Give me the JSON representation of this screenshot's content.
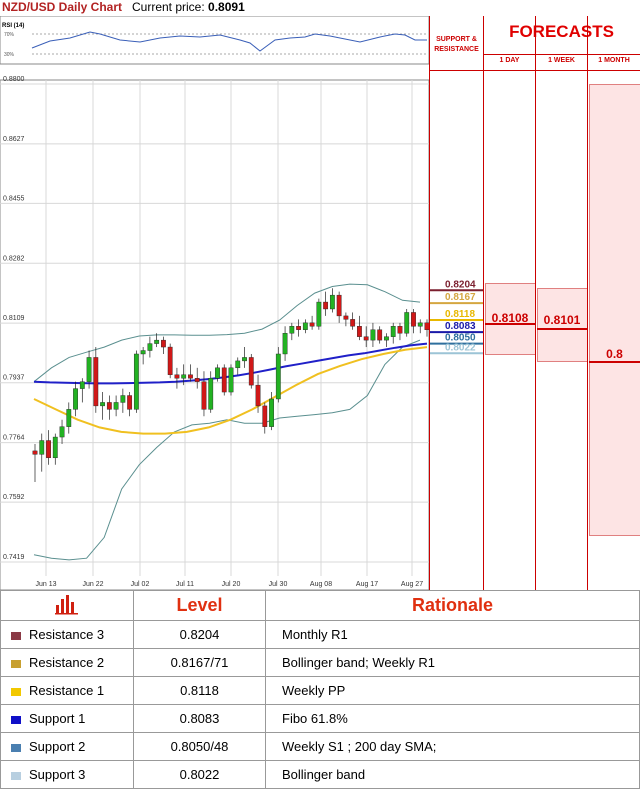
{
  "header": {
    "title": "NZD/USD Daily Chart",
    "price_label": "Current price:",
    "price_value": "0.8091"
  },
  "rsi": {
    "label": "RSI (14)",
    "upper": "70%",
    "lower": "30%"
  },
  "chart_data": {
    "type": "candlestick",
    "yticks": [
      "0.8800",
      "0.8627",
      "0.8455",
      "0.8282",
      "0.8109",
      "0.7937",
      "0.7764",
      "0.7592",
      "0.7419"
    ],
    "ylim": [
      0.7419,
      0.88
    ],
    "xticks": [
      "Jun 13",
      "Jun 22",
      "Jul 02",
      "Jul 11",
      "Jul 20",
      "Jul 30",
      "Aug 08",
      "Aug 17",
      "Aug 27"
    ],
    "candles": [
      [
        0.774,
        0.776,
        0.765,
        0.773
      ],
      [
        0.773,
        0.779,
        0.768,
        0.777
      ],
      [
        0.777,
        0.78,
        0.77,
        0.772
      ],
      [
        0.772,
        0.779,
        0.77,
        0.778
      ],
      [
        0.778,
        0.783,
        0.776,
        0.781
      ],
      [
        0.781,
        0.788,
        0.779,
        0.786
      ],
      [
        0.786,
        0.794,
        0.784,
        0.792
      ],
      [
        0.792,
        0.795,
        0.788,
        0.794
      ],
      [
        0.794,
        0.803,
        0.792,
        0.801
      ],
      [
        0.801,
        0.804,
        0.785,
        0.787
      ],
      [
        0.787,
        0.791,
        0.783,
        0.788
      ],
      [
        0.788,
        0.79,
        0.783,
        0.786
      ],
      [
        0.786,
        0.79,
        0.784,
        0.788
      ],
      [
        0.788,
        0.792,
        0.785,
        0.79
      ],
      [
        0.79,
        0.791,
        0.784,
        0.786
      ],
      [
        0.786,
        0.803,
        0.785,
        0.802
      ],
      [
        0.802,
        0.804,
        0.799,
        0.803
      ],
      [
        0.803,
        0.807,
        0.801,
        0.805
      ],
      [
        0.805,
        0.808,
        0.804,
        0.806
      ],
      [
        0.806,
        0.807,
        0.802,
        0.804
      ],
      [
        0.804,
        0.805,
        0.795,
        0.796
      ],
      [
        0.796,
        0.798,
        0.792,
        0.795
      ],
      [
        0.795,
        0.799,
        0.793,
        0.796
      ],
      [
        0.796,
        0.799,
        0.794,
        0.795
      ],
      [
        0.795,
        0.798,
        0.792,
        0.794
      ],
      [
        0.794,
        0.797,
        0.784,
        0.786
      ],
      [
        0.786,
        0.797,
        0.785,
        0.795
      ],
      [
        0.795,
        0.799,
        0.794,
        0.798
      ],
      [
        0.798,
        0.799,
        0.79,
        0.791
      ],
      [
        0.791,
        0.799,
        0.79,
        0.798
      ],
      [
        0.798,
        0.801,
        0.796,
        0.8
      ],
      [
        0.8,
        0.804,
        0.798,
        0.801
      ],
      [
        0.801,
        0.802,
        0.792,
        0.793
      ],
      [
        0.793,
        0.796,
        0.785,
        0.787
      ],
      [
        0.787,
        0.788,
        0.779,
        0.781
      ],
      [
        0.781,
        0.791,
        0.78,
        0.789
      ],
      [
        0.789,
        0.804,
        0.788,
        0.802
      ],
      [
        0.802,
        0.81,
        0.8,
        0.808
      ],
      [
        0.808,
        0.811,
        0.806,
        0.81
      ],
      [
        0.81,
        0.812,
        0.807,
        0.809
      ],
      [
        0.809,
        0.812,
        0.808,
        0.811
      ],
      [
        0.811,
        0.813,
        0.809,
        0.81
      ],
      [
        0.81,
        0.818,
        0.809,
        0.817
      ],
      [
        0.817,
        0.82,
        0.813,
        0.815
      ],
      [
        0.815,
        0.821,
        0.814,
        0.819
      ],
      [
        0.819,
        0.82,
        0.811,
        0.813
      ],
      [
        0.813,
        0.814,
        0.81,
        0.812
      ],
      [
        0.812,
        0.814,
        0.809,
        0.81
      ],
      [
        0.81,
        0.813,
        0.806,
        0.807
      ],
      [
        0.807,
        0.81,
        0.804,
        0.806
      ],
      [
        0.806,
        0.811,
        0.804,
        0.809
      ],
      [
        0.809,
        0.81,
        0.805,
        0.806
      ],
      [
        0.806,
        0.808,
        0.804,
        0.807
      ],
      [
        0.807,
        0.811,
        0.805,
        0.81
      ],
      [
        0.81,
        0.811,
        0.806,
        0.808
      ],
      [
        0.808,
        0.815,
        0.807,
        0.814
      ],
      [
        0.814,
        0.815,
        0.808,
        0.81
      ],
      [
        0.81,
        0.812,
        0.808,
        0.811
      ],
      [
        0.811,
        0.812,
        0.807,
        0.809
      ]
    ],
    "ma_blue": [
      0.794,
      0.7938,
      0.7937,
      0.7936,
      0.7935,
      0.7935,
      0.7936,
      0.7937,
      0.7938,
      0.794,
      0.7943,
      0.7947,
      0.7952,
      0.7958,
      0.7966,
      0.7975,
      0.7984,
      0.7992,
      0.8,
      0.8008,
      0.8016,
      0.8022,
      0.803,
      0.8038,
      0.8045,
      0.805
    ],
    "ma_yellow": [
      0.789,
      0.786,
      0.783,
      0.7808,
      0.7795,
      0.779,
      0.779,
      0.7795,
      0.7808,
      0.783,
      0.786,
      0.7895,
      0.793,
      0.7962,
      0.7985,
      0.8005,
      0.802,
      0.8032,
      0.804
    ],
    "bb_upper": [
      0.794,
      0.798,
      0.801,
      0.8025,
      0.804,
      0.806,
      0.8072,
      0.8075,
      0.8075,
      0.8074,
      0.8074,
      0.8076,
      0.808,
      0.8092,
      0.8118,
      0.816,
      0.8196,
      0.8215,
      0.8222,
      0.822,
      0.82,
      0.8175,
      0.817
    ],
    "bb_lower": [
      0.744,
      0.743,
      0.7425,
      0.743,
      0.749,
      0.763,
      0.77,
      0.775,
      0.7795,
      0.7815,
      0.782,
      0.783,
      0.782,
      0.782,
      0.7835,
      0.784,
      0.7845,
      0.785,
      0.786,
      0.79,
      0.799,
      0.804,
      0.806
    ],
    "level_markers": [
      {
        "value": 0.8204,
        "label": "0.8204",
        "color": "#7b1f2e"
      },
      {
        "value": 0.8167,
        "label": "0.8167",
        "color": "#d4a640"
      },
      {
        "value": 0.8118,
        "label": "0.8118",
        "color": "#e8b800"
      },
      {
        "value": 0.8083,
        "label": "0.8083",
        "color": "#1a1aa8"
      },
      {
        "value": 0.805,
        "label": "0.8050",
        "color": "#2e6f9e"
      },
      {
        "value": 0.8022,
        "label": "0.8022",
        "color": "#9cc4d6"
      }
    ]
  },
  "forecasts": {
    "title": "FORECASTS",
    "sr_header_1": "SUPPORT &",
    "sr_header_2": "RESISTANCE",
    "day_header": "1 DAY",
    "week_header": "1 WEEK",
    "month_header": "1 MONTH",
    "day_value": "0.8108",
    "week_value": "0.8101",
    "month_value": "0.8"
  },
  "table": {
    "level_header": "Level",
    "rationale_header": "Rationale",
    "rows": [
      {
        "name": "Resistance 3",
        "level": "0.8204",
        "rationale": "Monthly R1",
        "color": "#8b3a46"
      },
      {
        "name": "Resistance 2",
        "level": "0.8167/71",
        "rationale": "Bollinger band; Weekly R1",
        "color": "#c8a030"
      },
      {
        "name": "Resistance 1",
        "level": "0.8118",
        "rationale": "Weekly PP",
        "color": "#f2c800"
      },
      {
        "name": "Support 1",
        "level": "0.8083",
        "rationale": "Fibo 61.8%",
        "color": "#1010c8"
      },
      {
        "name": "Support 2",
        "level": "0.8050/48",
        "rationale": "Weekly S1 ; 200 day SMA;",
        "color": "#4a7fb0"
      },
      {
        "name": "Support 3",
        "level": "0.8022",
        "rationale": "Bollinger band",
        "color": "#b8cfe0"
      }
    ]
  }
}
